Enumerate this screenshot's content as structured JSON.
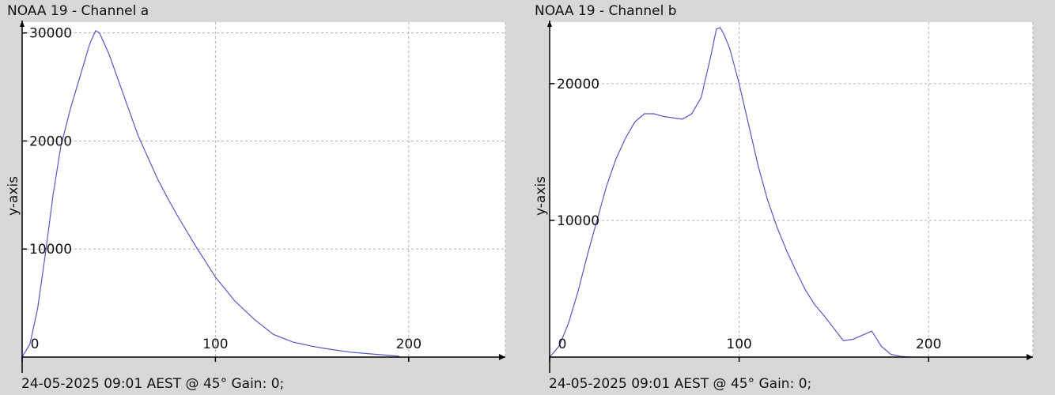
{
  "chart_data": [
    {
      "type": "line",
      "title": "NOAA 19 - Channel a",
      "xlabel": "",
      "ylabel": "y-axis",
      "footer": "24-05-2025 09:01 AEST @ 45° Gain: 0;",
      "xlim": [
        0,
        250
      ],
      "ylim": [
        0,
        31000
      ],
      "x_ticks": [
        0,
        100,
        200
      ],
      "y_ticks": [
        10000,
        20000,
        30000
      ],
      "grid": true,
      "line_color": "#5555cc",
      "x": [
        0,
        4,
        8,
        12,
        16,
        20,
        25,
        30,
        35,
        38,
        40,
        45,
        50,
        55,
        60,
        65,
        70,
        75,
        80,
        85,
        90,
        95,
        100,
        110,
        120,
        130,
        140,
        150,
        160,
        170,
        180,
        190,
        195
      ],
      "y": [
        0,
        1200,
        4500,
        9500,
        15000,
        19500,
        23000,
        26000,
        29000,
        30200,
        30000,
        28000,
        25500,
        23000,
        20500,
        18500,
        16500,
        14800,
        13200,
        11700,
        10200,
        8800,
        7400,
        5200,
        3500,
        2100,
        1400,
        1000,
        700,
        450,
        300,
        150,
        80
      ]
    },
    {
      "type": "line",
      "title": "NOAA 19 - Channel b",
      "xlabel": "",
      "ylabel": "y-axis",
      "footer": "24-05-2025 09:01 AEST @ 45° Gain: 0;",
      "xlim": [
        0,
        255
      ],
      "ylim": [
        0,
        24500
      ],
      "x_ticks": [
        0,
        100,
        200
      ],
      "y_ticks": [
        10000,
        20000
      ],
      "grid": true,
      "line_color": "#5555cc",
      "x": [
        0,
        5,
        10,
        15,
        20,
        25,
        30,
        35,
        40,
        45,
        50,
        55,
        60,
        65,
        70,
        75,
        80,
        85,
        88,
        90,
        92,
        95,
        100,
        105,
        110,
        115,
        120,
        125,
        130,
        135,
        140,
        145,
        150,
        155,
        160,
        165,
        170,
        175,
        180,
        185,
        190
      ],
      "y": [
        0,
        800,
        2500,
        4800,
        7500,
        10000,
        12500,
        14500,
        16000,
        17200,
        17800,
        17800,
        17600,
        17500,
        17400,
        17800,
        19000,
        22000,
        24000,
        24100,
        23600,
        22600,
        20000,
        17000,
        14000,
        11500,
        9500,
        7800,
        6300,
        4900,
        3800,
        3000,
        2100,
        1200,
        1300,
        1600,
        1900,
        800,
        200,
        50,
        0
      ]
    }
  ]
}
